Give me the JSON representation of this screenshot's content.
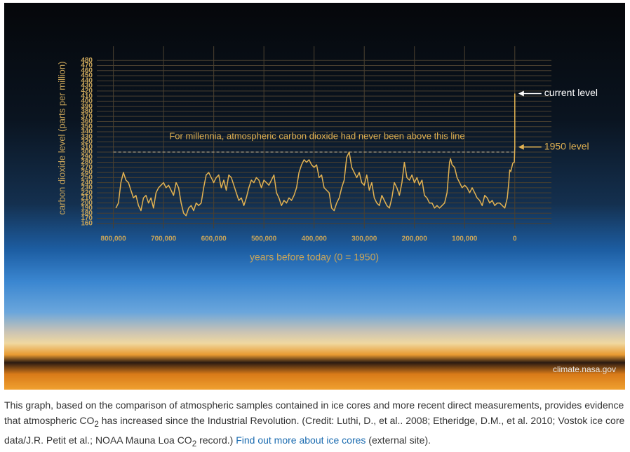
{
  "chart_data": {
    "type": "line",
    "xlabel": "years before today (0 = 1950)",
    "ylabel": "carbon dioxide level (parts per million)",
    "xlim": [
      833000,
      -73000
    ],
    "xticks": [
      {
        "value": 800000,
        "label": "800,000"
      },
      {
        "value": 700000,
        "label": "700,000"
      },
      {
        "value": 600000,
        "label": "600,000"
      },
      {
        "value": 500000,
        "label": "500,000"
      },
      {
        "value": 400000,
        "label": "400,000"
      },
      {
        "value": 300000,
        "label": "300,000"
      },
      {
        "value": 200000,
        "label": "200,000"
      },
      {
        "value": 100000,
        "label": "100,000"
      },
      0
    ],
    "ylim": [
      150,
      490
    ],
    "yticks": [
      160,
      170,
      180,
      190,
      200,
      210,
      220,
      230,
      240,
      250,
      260,
      270,
      280,
      290,
      300,
      310,
      320,
      330,
      340,
      350,
      360,
      370,
      380,
      390,
      400,
      410,
      420,
      430,
      440,
      450,
      460,
      470,
      480
    ],
    "grid": true,
    "threshold": {
      "value": 300,
      "label": "For millennia, atmospheric carbon dioxide had never been above this line"
    },
    "annotations": [
      {
        "text": "current level",
        "y": 415
      },
      {
        "text": "1950 level",
        "y": 310
      }
    ],
    "credit": "climate.nasa.gov",
    "series": [
      {
        "color": "#e2b252",
        "x": [
          795000,
          790000,
          785000,
          780000,
          775000,
          770000,
          765000,
          760000,
          755000,
          750000,
          745000,
          740000,
          735000,
          730000,
          725000,
          720000,
          715000,
          710000,
          705000,
          700000,
          695000,
          690000,
          685000,
          680000,
          675000,
          670000,
          665000,
          660000,
          655000,
          650000,
          645000,
          640000,
          635000,
          630000,
          625000,
          620000,
          615000,
          610000,
          605000,
          600000,
          595000,
          590000,
          585000,
          580000,
          575000,
          570000,
          565000,
          560000,
          555000,
          550000,
          545000,
          540000,
          535000,
          530000,
          525000,
          520000,
          515000,
          510000,
          505000,
          500000,
          495000,
          490000,
          485000,
          480000,
          475000,
          470000,
          465000,
          460000,
          455000,
          450000,
          445000,
          440000,
          435000,
          430000,
          425000,
          420000,
          415000,
          410000,
          405000,
          400000,
          395000,
          390000,
          385000,
          380000,
          375000,
          370000,
          365000,
          360000,
          355000,
          350000,
          345000,
          340000,
          335000,
          330000,
          325000,
          320000,
          315000,
          310000,
          305000,
          300000,
          295000,
          290000,
          285000,
          280000,
          275000,
          270000,
          265000,
          260000,
          255000,
          250000,
          245000,
          240000,
          235000,
          230000,
          225000,
          220000,
          215000,
          210000,
          205000,
          200000,
          195000,
          190000,
          185000,
          180000,
          175000,
          170000,
          165000,
          160000,
          155000,
          150000,
          145000,
          140000,
          135000,
          130000,
          128000,
          125000,
          120000,
          115000,
          110000,
          105000,
          100000,
          95000,
          90000,
          85000,
          80000,
          75000,
          70000,
          65000,
          60000,
          55000,
          50000,
          45000,
          40000,
          35000,
          30000,
          25000,
          20000,
          15000,
          12000,
          10000,
          8000,
          6000,
          4000,
          2000,
          1000,
          0,
          -70
        ],
        "values": [
          190,
          200,
          240,
          260,
          245,
          240,
          225,
          210,
          215,
          195,
          185,
          210,
          215,
          200,
          210,
          190,
          220,
          230,
          235,
          240,
          230,
          235,
          225,
          215,
          240,
          230,
          200,
          180,
          175,
          190,
          195,
          185,
          200,
          195,
          200,
          230,
          255,
          260,
          250,
          240,
          250,
          255,
          230,
          245,
          225,
          255,
          250,
          235,
          220,
          205,
          210,
          195,
          210,
          230,
          245,
          240,
          250,
          245,
          230,
          245,
          240,
          235,
          245,
          255,
          220,
          210,
          195,
          205,
          200,
          210,
          205,
          215,
          230,
          260,
          275,
          285,
          280,
          285,
          275,
          270,
          275,
          250,
          255,
          230,
          225,
          220,
          190,
          185,
          200,
          210,
          230,
          245,
          290,
          300,
          270,
          260,
          250,
          260,
          240,
          235,
          255,
          225,
          240,
          210,
          200,
          195,
          215,
          205,
          195,
          190,
          210,
          240,
          230,
          215,
          240,
          280,
          250,
          245,
          255,
          240,
          250,
          235,
          245,
          215,
          210,
          200,
          200,
          190,
          195,
          190,
          195,
          200,
          220,
          280,
          287,
          275,
          270,
          250,
          240,
          230,
          235,
          230,
          220,
          230,
          220,
          210,
          205,
          195,
          215,
          210,
          200,
          205,
          195,
          200,
          200,
          195,
          190,
          210,
          240,
          265,
          262,
          270,
          278,
          280,
          280,
          310,
          415
        ]
      }
    ]
  },
  "caption": {
    "parts": [
      "This graph, based on the comparison of atmospheric samples contained in ice cores and more recent direct measurements, provides evidence that atmospheric CO",
      "2",
      " has increased since the Industrial Revolution. (Credit: Luthi, D., et al.. 2008; Etheridge, D.M., et al. 2010; Vostok ice core data/J.R. Petit et al.; NOAA Mauna Loa CO",
      "2",
      " record.) "
    ],
    "link": "Find out more about ice cores",
    "tail": " (external site)."
  }
}
